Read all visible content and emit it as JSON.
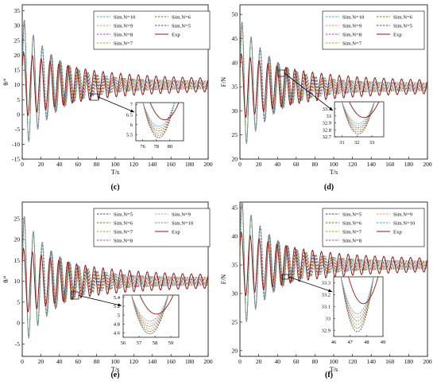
{
  "colors": {
    "axis": "#000000",
    "exp": "#8b1a1a",
    "n5": "#4a4a78",
    "n6": "#8a6a20",
    "n7": "#9aaa2a",
    "n8": "#9a50b0",
    "n9": "#e09a60",
    "n10": "#40a0c0"
  },
  "chart_data": [
    {
      "panel": "(c)",
      "type": "line",
      "xlabel": "T/s",
      "ylabel": "θ/°",
      "xlim": [
        0,
        200
      ],
      "ylim": [
        -15,
        37
      ],
      "xticks": [
        0,
        20,
        40,
        60,
        80,
        100,
        120,
        140,
        160,
        180,
        200
      ],
      "yticks": [
        -15,
        -10,
        -5,
        0,
        5,
        10,
        15,
        20,
        25,
        30,
        35
      ],
      "legend": [
        "Sim.N=10",
        "Sim.N=6",
        "Sim.N=9",
        "Sim.N=5",
        "Sim.N=8",
        "Exp",
        "Sim.N=7"
      ],
      "legend_keys": [
        "n10",
        "n6",
        "n9",
        "n5",
        "n8",
        "exp",
        "n7"
      ],
      "series": [
        {
          "key": "exp",
          "name": "Exp",
          "x": [
            0,
            10,
            20,
            40,
            60,
            80,
            100,
            120,
            140,
            160,
            180,
            200
          ],
          "y": [
            2,
            14,
            15,
            13,
            11.5,
            10.5,
            10,
            10,
            10,
            10,
            10,
            10
          ]
        },
        {
          "key": "n10",
          "name": "Sim.N=10",
          "x": [
            0,
            5,
            10,
            20,
            40,
            60,
            80,
            100,
            120,
            140,
            160,
            180,
            200
          ],
          "y": [
            35,
            -10,
            20,
            14,
            12,
            11,
            10,
            10,
            10,
            10,
            10,
            10,
            10
          ]
        }
      ],
      "inset": {
        "xticks": [
          76,
          78,
          80
        ],
        "yticks": [
          5.5,
          6,
          6.5,
          7
        ],
        "xlim": [
          75,
          82
        ],
        "ylim": [
          5.2,
          7.1
        ]
      }
    },
    {
      "panel": "(d)",
      "type": "line",
      "xlabel": "T/s",
      "ylabel": "F/N",
      "xlim": [
        0,
        200
      ],
      "ylim": [
        20,
        52
      ],
      "xticks": [
        0,
        20,
        40,
        60,
        80,
        100,
        120,
        140,
        160,
        180,
        200
      ],
      "yticks": [
        20,
        25,
        30,
        35,
        40,
        45,
        50
      ],
      "legend": [
        "Sim.N=10",
        "Sim.N=6",
        "Sim.N=9",
        "Sim.N=5",
        "Sim.N=8",
        "Exp",
        "Sim.N=7"
      ],
      "legend_keys": [
        "n10",
        "n6",
        "n9",
        "n5",
        "n8",
        "exp",
        "n7"
      ],
      "series": [
        {
          "key": "exp",
          "name": "Exp",
          "x": [
            0,
            10,
            20,
            40,
            60,
            80,
            100,
            120,
            140,
            160,
            180,
            200
          ],
          "y": [
            35,
            36,
            35.5,
            35,
            35,
            35,
            35,
            35,
            35,
            35,
            35,
            35
          ]
        },
        {
          "key": "n10",
          "name": "Sim.N=10",
          "x": [
            0,
            5,
            10,
            20,
            40,
            60,
            80,
            100,
            120,
            140,
            160,
            180,
            200
          ],
          "y": [
            50,
            26,
            44,
            36,
            35,
            35,
            35,
            35,
            35,
            35,
            35,
            35,
            35
          ]
        }
      ],
      "inset": {
        "xticks": [
          31,
          32,
          33
        ],
        "yticks": [
          32.7,
          32.8,
          32.9,
          33,
          33.1
        ],
        "xlim": [
          30.5,
          33.8
        ],
        "ylim": [
          32.7,
          33.2
        ]
      }
    },
    {
      "panel": "(e)",
      "type": "line",
      "xlabel": "T/s",
      "ylabel": "θ/°",
      "xlim": [
        0,
        200
      ],
      "ylim": [
        -8,
        29
      ],
      "xticks": [
        0,
        20,
        40,
        60,
        80,
        100,
        120,
        140,
        160,
        180,
        200
      ],
      "yticks": [
        -5,
        0,
        5,
        10,
        15,
        20,
        25
      ],
      "legend": [
        "Sim.N=5",
        "Sim.N=9",
        "Sim.N=6",
        "Sim.N=10",
        "Sim.N=7",
        "Exp",
        "Sim.N=8"
      ],
      "legend_keys": [
        "n5",
        "n9",
        "n6",
        "n10",
        "n7",
        "exp",
        "n8"
      ],
      "series": [
        {
          "key": "exp",
          "name": "Exp",
          "x": [
            0,
            10,
            20,
            40,
            60,
            80,
            100,
            120,
            140,
            160,
            180,
            200
          ],
          "y": [
            3,
            17,
            15,
            13,
            12,
            11,
            10.5,
            10,
            10,
            10,
            10,
            10
          ]
        },
        {
          "key": "n10",
          "name": "Sim.N=10",
          "x": [
            0,
            5,
            10,
            20,
            40,
            60,
            80,
            100,
            120,
            140,
            160,
            180,
            200
          ],
          "y": [
            27,
            -6,
            20,
            15,
            13,
            12,
            11,
            10.5,
            10,
            10,
            10,
            10,
            10
          ]
        }
      ],
      "inset": {
        "xticks": [
          56,
          57,
          58,
          59
        ],
        "yticks": [
          4.6,
          4.8,
          5,
          5.2,
          5.4
        ],
        "xlim": [
          56,
          59.5
        ],
        "ylim": [
          4.5,
          5.45
        ]
      }
    },
    {
      "panel": "(f)",
      "type": "line",
      "xlabel": "T/s",
      "ylabel": "F/N",
      "xlim": [
        0,
        200
      ],
      "ylim": [
        19,
        46
      ],
      "xticks": [
        0,
        20,
        40,
        60,
        80,
        100,
        120,
        140,
        160,
        180,
        200
      ],
      "yticks": [
        20,
        25,
        30,
        35,
        40,
        45
      ],
      "legend": [
        "Sim.N=5",
        "Sim.N=9",
        "Sim.N=6",
        "Sim.N=10",
        "Sim.N=7",
        "Exp",
        "Sim.N=8"
      ],
      "legend_keys": [
        "n5",
        "n9",
        "n6",
        "n10",
        "n7",
        "exp",
        "n8"
      ],
      "series": [
        {
          "key": "exp",
          "name": "Exp",
          "x": [
            0,
            10,
            20,
            40,
            60,
            80,
            100,
            120,
            140,
            160,
            180,
            200
          ],
          "y": [
            35,
            37,
            36,
            35.5,
            35,
            35,
            35,
            35,
            35,
            35,
            35,
            35
          ]
        },
        {
          "key": "n10",
          "name": "Sim.N=10",
          "x": [
            0,
            5,
            10,
            20,
            40,
            60,
            80,
            100,
            120,
            140,
            160,
            180,
            200
          ],
          "y": [
            45,
            22,
            40,
            37,
            36,
            35.5,
            35,
            35,
            35,
            35,
            35,
            35,
            35
          ]
        }
      ],
      "inset": {
        "xticks": [
          46,
          47,
          48,
          49
        ],
        "yticks": [
          32.9,
          33,
          33.1,
          33.2,
          33.3
        ],
        "xlim": [
          46,
          49
        ],
        "ylim": [
          32.85,
          33.35
        ]
      }
    }
  ]
}
